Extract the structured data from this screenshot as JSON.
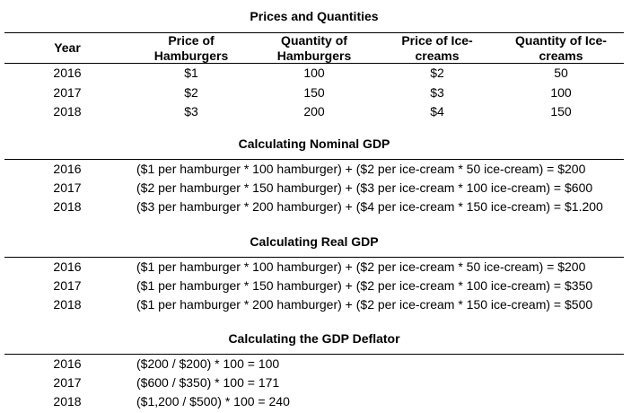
{
  "sections": [
    {
      "title": "Prices and Quantities",
      "header": [
        [
          "Year"
        ],
        [
          "Price of",
          "Hamburgers"
        ],
        [
          "Quantity of",
          "Hamburgers"
        ],
        [
          "Price of Ice-",
          "creams"
        ],
        [
          "Quantity of Ice-",
          "creams"
        ]
      ],
      "rows": [
        [
          "2016",
          "$1",
          "100",
          "$2",
          "50"
        ],
        [
          "2017",
          "$2",
          "150",
          "$3",
          "100"
        ],
        [
          "2018",
          "$3",
          "200",
          "$4",
          "150"
        ]
      ]
    },
    {
      "title": "Calculating Nominal GDP",
      "rows": [
        [
          "2016",
          "($1 per hamburger * 100 hamburger) + ($2 per ice-cream * 50 ice-cream) = $200"
        ],
        [
          "2017",
          "($2 per hamburger * 150 hamburger) + ($3 per ice-cream * 100 ice-cream) = $600"
        ],
        [
          "2018",
          "($3 per hamburger * 200 hamburger) + ($4 per ice-cream * 150 ice-cream) = $1.200"
        ]
      ]
    },
    {
      "title": "Calculating Real GDP",
      "rows": [
        [
          "2016",
          "($1 per hamburger * 100 hamburger) + ($2 per ice-cream * 50 ice-cream) = $200"
        ],
        [
          "2017",
          "($1 per hamburger * 150 hamburger) + ($2 per ice-cream * 100 ice-cream) = $350"
        ],
        [
          "2018",
          "($1 per hamburger * 200 hamburger) + ($2 per ice-cream * 150 ice-cream) = $500"
        ]
      ]
    },
    {
      "title": "Calculating the GDP Deflator",
      "rows": [
        [
          "2016",
          "($200 / $200) * 100 = 100"
        ],
        [
          "2017",
          "($600 / $350) * 100 = 171"
        ],
        [
          "2018",
          "($1,200 / $500) * 100 = 240"
        ]
      ]
    }
  ]
}
